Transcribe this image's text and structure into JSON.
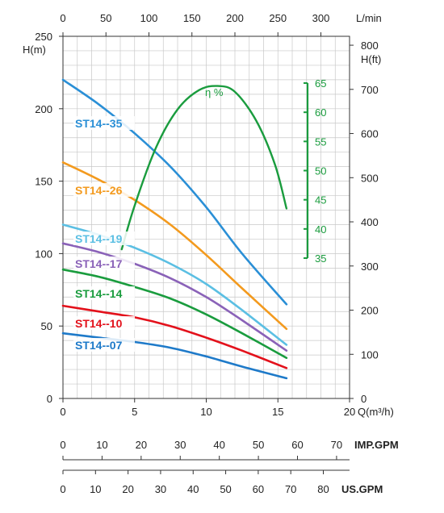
{
  "chart_data": {
    "type": "line",
    "x_axis": {
      "label": "Q(m³/h)",
      "ticks": [
        0,
        5,
        10,
        15,
        20
      ],
      "range": [
        0,
        20
      ]
    },
    "x_top_axis": {
      "label": "L/min",
      "ticks": [
        0,
        50,
        100,
        150,
        200,
        250,
        300
      ]
    },
    "y_left_axis": {
      "label": "H(m)",
      "ticks": [
        0,
        50,
        100,
        150,
        200,
        250
      ],
      "range": [
        0,
        250
      ]
    },
    "y_right_axis": {
      "unit_top": "L/min",
      "label": "H(ft)",
      "ticks": [
        0,
        100,
        200,
        300,
        400,
        500,
        600,
        700,
        800
      ]
    },
    "efficiency_axis": {
      "label": "η %",
      "ticks": [
        35,
        40,
        45,
        50,
        55,
        60,
        65
      ],
      "color": "#1a9c3e"
    },
    "imp_gpm_axis": {
      "label": "IMP.GPM",
      "ticks": [
        0,
        10,
        20,
        30,
        40,
        50,
        60,
        70
      ]
    },
    "us_gpm_axis": {
      "label": "US.GPM",
      "ticks": [
        0,
        10,
        20,
        30,
        40,
        50,
        60,
        70,
        80
      ]
    },
    "grid": true,
    "series": [
      {
        "name": "ST14--35",
        "color": "#2a8fd6",
        "x": [
          0,
          2.5,
          5,
          7.5,
          10,
          12.5,
          15.6
        ],
        "y": [
          220,
          203,
          183,
          160,
          132,
          100,
          65
        ]
      },
      {
        "name": "ST14--26",
        "color": "#f39a1e",
        "x": [
          0,
          2.5,
          5,
          7.5,
          10,
          12.5,
          15.6
        ],
        "y": [
          163,
          151,
          137,
          120,
          99,
          76,
          48
        ]
      },
      {
        "name": "ST14--19",
        "color": "#5bbfe3",
        "x": [
          0,
          2.5,
          5,
          7.5,
          10,
          12.5,
          15.6
        ],
        "y": [
          120,
          113,
          104,
          93,
          79,
          61,
          37
        ]
      },
      {
        "name": "ST14--17",
        "color": "#8a62b8",
        "x": [
          0,
          2.5,
          5,
          7.5,
          10,
          12.5,
          15.6
        ],
        "y": [
          107,
          101,
          93,
          83,
          70,
          54,
          33
        ]
      },
      {
        "name": "ST14--14",
        "color": "#1a9c3e",
        "x": [
          0,
          2.5,
          5,
          7.5,
          10,
          12.5,
          15.6
        ],
        "y": [
          89,
          84,
          77,
          69,
          58,
          45,
          28
        ]
      },
      {
        "name": "ST14--10",
        "color": "#e3111b",
        "x": [
          0,
          2.5,
          5,
          7.5,
          10,
          12.5,
          15.6
        ],
        "y": [
          64,
          60,
          56,
          50,
          42,
          33,
          21
        ]
      },
      {
        "name": "ST14--07",
        "color": "#1e7ac9",
        "x": [
          0,
          2.5,
          5,
          7.5,
          10,
          12.5,
          15.6
        ],
        "y": [
          45,
          42,
          39,
          35,
          29,
          22,
          14
        ]
      }
    ],
    "efficiency_series": {
      "name": "η %",
      "color": "#1a9c3e",
      "x": [
        4.1,
        5.0,
        6.5,
        8.0,
        9.5,
        10.8,
        12.0,
        13.5,
        14.8,
        15.6
      ],
      "y": [
        36.5,
        44.0,
        54.0,
        60.5,
        63.8,
        64.5,
        63.5,
        58.5,
        51.0,
        43.5
      ]
    }
  }
}
